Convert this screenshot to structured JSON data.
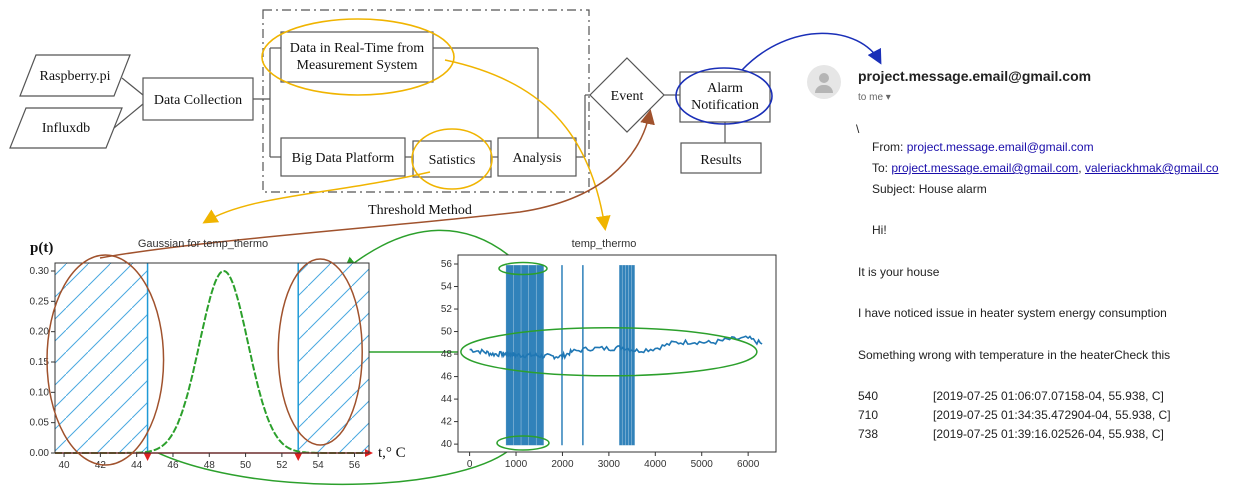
{
  "flow": {
    "raspberry": "Raspberry.pi",
    "influx": "Influxdb",
    "collection": "Data Collection",
    "realtime_l1": "Data in Real-Time from",
    "realtime_l2": "Measurement System",
    "bigdata": "Big Data Platform",
    "statistics": "Satistics",
    "analysis": "Analysis",
    "event": "Event",
    "alarm_l1": "Alarm",
    "alarm_l2": "Notification",
    "results": "Results",
    "threshold": "Threshold Method"
  },
  "chart_data": [
    {
      "type": "line",
      "title": "Gaussian for temp_thermo",
      "ylabel": "p(t)",
      "xlabel": "t,° C",
      "xlim": [
        39.5,
        56.8
      ],
      "ylim": [
        0,
        0.3
      ],
      "xticks": [
        40,
        42,
        44,
        46,
        48,
        50,
        52,
        54,
        56
      ],
      "yticks": [
        "0.00",
        "0.05",
        "0.10",
        "0.15",
        "0.20",
        "0.25",
        "0.30"
      ],
      "mean": 48.8,
      "std": 1.33,
      "thresholds": [
        44.6,
        52.9
      ],
      "colors": {
        "curve": "#2ca02c",
        "threshold": "#1f9ad6",
        "axis": "#e02020",
        "ellipse": "#a0522d"
      }
    },
    {
      "type": "line",
      "title": "temp_thermo",
      "xlim": [
        -250,
        6600
      ],
      "ylim": [
        39.3,
        56.8
      ],
      "xticks": [
        0,
        1000,
        2000,
        3000,
        4000,
        5000,
        6000
      ],
      "yticks": [
        40,
        42,
        44,
        46,
        48,
        50,
        52,
        54,
        56
      ],
      "series": [
        {
          "x": [
            0,
            300,
            500,
            700,
            800,
            900,
            1000,
            1200,
            1400,
            1600,
            1800,
            2000,
            2200,
            2600,
            3000,
            3300,
            3600,
            4000,
            4400,
            4800,
            5200,
            5600,
            6000,
            6300
          ],
          "values": [
            48.4,
            48.2,
            48.0,
            48.0,
            48.0,
            48.0,
            47.9,
            47.9,
            47.9,
            47.8,
            47.8,
            47.8,
            48.2,
            48.5,
            48.5,
            48.6,
            48.3,
            48.5,
            49.0,
            49.1,
            49.0,
            49.3,
            49.4,
            48.9
          ]
        }
      ],
      "oscillation_bands": [
        [
          780,
          1600
        ],
        [
          3220,
          3560
        ]
      ],
      "spikes": [
        1990,
        2440
      ],
      "color": "#1f77b4"
    }
  ],
  "email": {
    "sender": "project.message.email@gmail.com",
    "to_line": "to me",
    "slash": "\\",
    "from_label": "From:",
    "from_addr": "project.message.email@gmail.com",
    "to_label": "To:",
    "to_addr1": "project.message.email@gmail.com",
    "to_sep": ",",
    "to_addr2": "valeriackhmak@gmail.co",
    "subject": "Subject: House alarm",
    "greeting": "Hi!",
    "line1": "It is your house",
    "line2": "I have noticed issue in heater system energy consumption",
    "line3": "Something wrong with temperature in the heaterCheck this",
    "log": [
      {
        "idx": "540",
        "msg": "[2019-07-25 01:06:07.07158-04, 55.938, C]"
      },
      {
        "idx": "710",
        "msg": "[2019-07-25 01:34:35.472904-04, 55.938, C]"
      },
      {
        "idx": "738",
        "msg": "[2019-07-25 01:39:16.02526-04, 55.938, C]"
      }
    ]
  }
}
